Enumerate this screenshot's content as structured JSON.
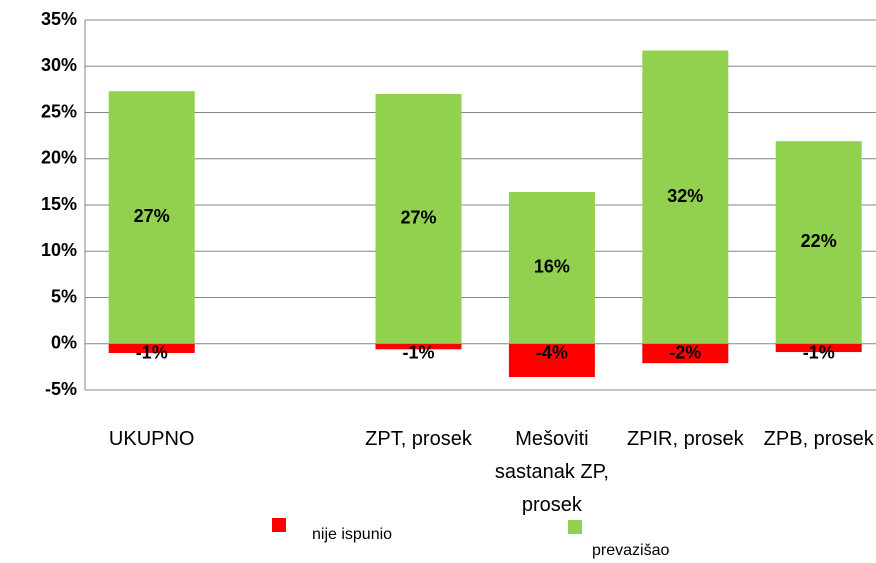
{
  "chart_data": {
    "type": "bar",
    "stacked": false,
    "categories": [
      "UKUPNO",
      null,
      "ZPT, prosek",
      "Mešoviti sastanak ZP, prosek",
      "ZPIR, prosek",
      "ZPB, prosek"
    ],
    "series": [
      {
        "name": "nije ispunio",
        "color": "#ff0000",
        "values": [
          -1.0,
          null,
          -0.6,
          -3.6,
          -2.1,
          -0.9
        ],
        "value_labels": [
          "-1%",
          null,
          "-1%",
          "-4%",
          "-2%",
          "-1%"
        ]
      },
      {
        "name": "prevazišao",
        "color": "#92d050",
        "values": [
          27.3,
          null,
          27.0,
          16.4,
          31.7,
          21.9
        ],
        "value_labels": [
          "27%",
          null,
          "27%",
          "16%",
          "32%",
          "22%"
        ]
      }
    ],
    "ylim": [
      -5,
      35
    ],
    "yticks": [
      {
        "value": -5,
        "label": "-5%"
      },
      {
        "value": 0,
        "label": "0%"
      },
      {
        "value": 5,
        "label": "5%"
      },
      {
        "value": 10,
        "label": "10%"
      },
      {
        "value": 15,
        "label": "15%"
      },
      {
        "value": 20,
        "label": "20%"
      },
      {
        "value": 25,
        "label": "25%"
      },
      {
        "value": 30,
        "label": "30%"
      },
      {
        "value": 35,
        "label": "35%"
      }
    ],
    "grid": true,
    "legend": "bottom"
  }
}
